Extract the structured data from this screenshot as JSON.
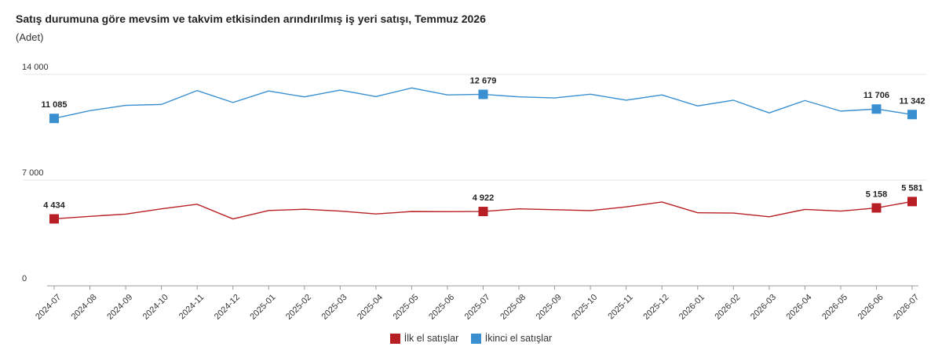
{
  "title": "Satış durumuna göre mevsim ve takvim etkisinden arındırılmış iş yeri satışı, Temmuz 2026",
  "subtitle": "(Adet)",
  "colors": {
    "first_hand": "#b81f24",
    "second_hand": "#3a8fd1",
    "grid": "#e6e6e6",
    "axis": "#999999"
  },
  "chart_data": {
    "type": "line",
    "x": [
      "2024-07",
      "2024-08",
      "2024-09",
      "2024-10",
      "2024-11",
      "2024-12",
      "2025-01",
      "2025-02",
      "2025-03",
      "2025-04",
      "2025-05",
      "2025-06",
      "2025-07",
      "2025-08",
      "2025-09",
      "2025-10",
      "2025-11",
      "2025-12",
      "2026-01",
      "2026-02",
      "2026-03",
      "2026-04",
      "2026-05",
      "2026-06",
      "2026-07"
    ],
    "ylim": [
      0,
      14000
    ],
    "yticks": [
      0,
      7000,
      14000
    ],
    "ytick_labels": [
      "0",
      "7 000",
      "14 000"
    ],
    "series": [
      {
        "name": "İlk el satışlar",
        "color": "#b81f24",
        "values": [
          4434,
          4600,
          4750,
          5100,
          5400,
          4430,
          4990,
          5070,
          4950,
          4760,
          4920,
          4910,
          4922,
          5100,
          5040,
          4980,
          5230,
          5550,
          4840,
          4820,
          4570,
          5060,
          4950,
          5158,
          5581
        ],
        "markers": [
          0,
          12,
          23,
          24
        ],
        "marker_labels": [
          "4 434",
          "4 922",
          "5 158",
          "5 581"
        ]
      },
      {
        "name": "İkinci el satışlar",
        "color": "#3a8fd1",
        "values": [
          11085,
          11600,
          11950,
          12010,
          12930,
          12140,
          12900,
          12510,
          12960,
          12530,
          13100,
          12640,
          12679,
          12510,
          12440,
          12690,
          12290,
          12640,
          11910,
          12290,
          11450,
          12270,
          11570,
          11706,
          11342
        ],
        "markers": [
          0,
          12,
          23,
          24
        ],
        "marker_labels": [
          "11 085",
          "12 679",
          "11 706",
          "11 342"
        ]
      }
    ]
  }
}
